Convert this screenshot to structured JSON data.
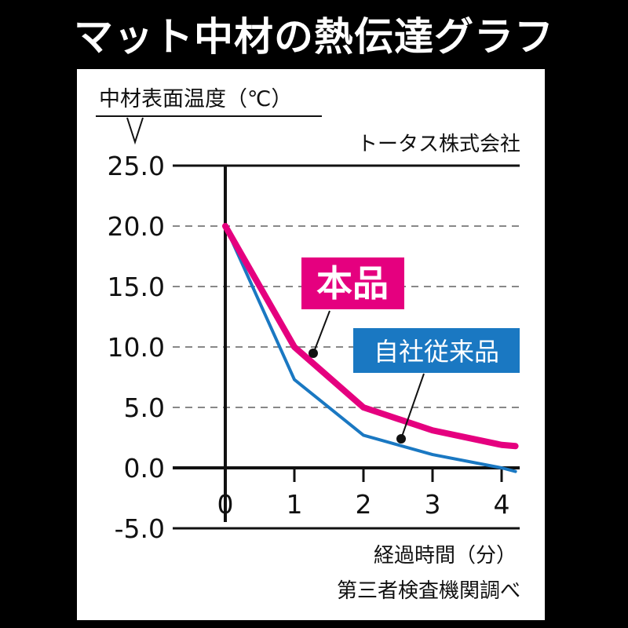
{
  "title": "マット中材の熱伝達グラフ",
  "chart_data": {
    "type": "line",
    "ylabel": "中材表面温度（℃）",
    "xlabel": "経過時間（分）",
    "source": "トータス株式会社",
    "note": "第三者検査機関調べ",
    "ylim": [
      -5,
      25
    ],
    "xlim": [
      0,
      4.2
    ],
    "yticks": [
      "25.0",
      "20.0",
      "15.0",
      "10.0",
      "5.0",
      "0.0",
      "-5.0"
    ],
    "ytick_values": [
      25,
      20,
      15,
      10,
      5,
      0,
      -5
    ],
    "xticks": [
      "0",
      "1",
      "2",
      "3",
      "4"
    ],
    "xtick_values": [
      0,
      1,
      2,
      3,
      4
    ],
    "grid": "dashed horizontal",
    "series": [
      {
        "name": "本品",
        "color": "#e5007f",
        "x": [
          0,
          1,
          2,
          3,
          4,
          4.2
        ],
        "y": [
          20,
          10,
          5,
          3.1,
          1.9,
          1.8
        ]
      },
      {
        "name": "自社従来品",
        "color": "#1a78c2",
        "x": [
          0,
          1,
          2,
          3,
          4,
          4.2
        ],
        "y": [
          20,
          7.3,
          2.7,
          1.1,
          0,
          -0.3
        ]
      }
    ]
  }
}
